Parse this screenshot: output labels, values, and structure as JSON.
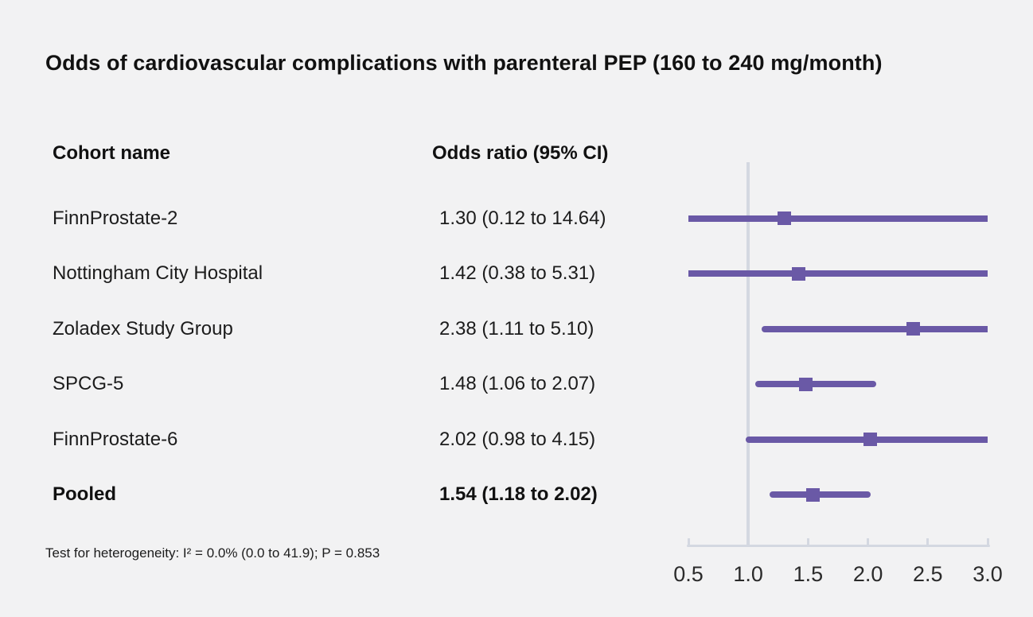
{
  "title": "Odds of cardiovascular complications with parenteral PEP (160 to 240 mg/month)",
  "table": {
    "cohort_header": "Cohort name",
    "or_header": "Odds ratio (95% CI)",
    "rows": [
      {
        "name": "FinnProstate-2",
        "value": "1.30 (0.12 to 14.64)"
      },
      {
        "name": "Nottingham City Hospital",
        "value": "1.42 (0.38 to 5.31)"
      },
      {
        "name": "Zoladex Study Group",
        "value": "2.38 (1.11 to 5.10)"
      },
      {
        "name": "SPCG-5",
        "value": "1.48 (1.06 to 2.07)"
      },
      {
        "name": "FinnProstate-6",
        "value": "2.02 (0.98 to 4.15)"
      },
      {
        "name": "Pooled",
        "value": "1.54 (1.18 to 2.02)"
      }
    ]
  },
  "footnote": "Test for heterogeneity: I² = 0.0% (0.0 to 41.9); P = 0.853",
  "colors": {
    "marker": "#6a59a6",
    "axis": "#d4d8e1",
    "background": "#f2f2f3",
    "text": "#191919"
  },
  "chart_data": {
    "type": "forest",
    "title": "Odds of cardiovascular complications with parenteral PEP (160 to 240 mg/month)",
    "xlim": [
      0.5,
      3.0
    ],
    "reference_line": 1.0,
    "tick_values": [
      0.5,
      1.0,
      1.5,
      2.0,
      2.5,
      3.0
    ],
    "tick_labels": [
      "0.5",
      "1.0",
      "1.5",
      "2.0",
      "2.5",
      "3.0"
    ],
    "grid": false,
    "series": [
      {
        "name": "FinnProstate-2",
        "or": 1.3,
        "lower": 0.12,
        "upper": 14.64,
        "pooled": false
      },
      {
        "name": "Nottingham City Hospital",
        "or": 1.42,
        "lower": 0.38,
        "upper": 5.31,
        "pooled": false
      },
      {
        "name": "Zoladex Study Group",
        "or": 2.38,
        "lower": 1.11,
        "upper": 5.1,
        "pooled": false
      },
      {
        "name": "SPCG-5",
        "or": 1.48,
        "lower": 1.06,
        "upper": 2.07,
        "pooled": false
      },
      {
        "name": "FinnProstate-6",
        "or": 2.02,
        "lower": 0.98,
        "upper": 4.15,
        "pooled": false
      },
      {
        "name": "Pooled",
        "or": 1.54,
        "lower": 1.18,
        "upper": 2.02,
        "pooled": true
      }
    ],
    "heterogeneity_note": "Test for heterogeneity: I² = 0.0% (0.0 to 41.9); P = 0.853"
  }
}
